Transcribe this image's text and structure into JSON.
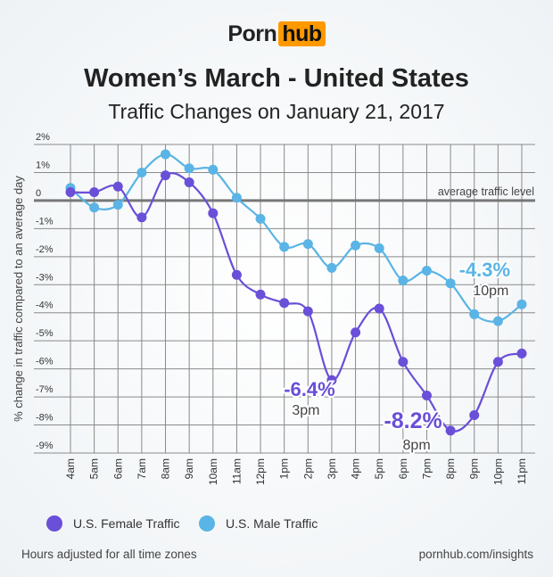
{
  "logo": {
    "part1": "Porn",
    "part2": "hub",
    "accent": "#ff9900"
  },
  "chart_data": {
    "type": "line",
    "title": "Women’s March - United States",
    "subtitle": "Traffic Changes on January 21, 2017",
    "ylabel": "% change in traffic compared to an average day",
    "xlabel": "",
    "ylim": [
      -9,
      2
    ],
    "yticks": [
      "2%",
      "1%",
      "0",
      "-1%",
      "-2%",
      "-3%",
      "-4%",
      "-5%",
      "-6%",
      "-7%",
      "-8%",
      "-9%"
    ],
    "categories": [
      "4am",
      "5am",
      "6am",
      "7am",
      "8am",
      "9am",
      "10am",
      "11am",
      "12pm",
      "1pm",
      "2pm",
      "3pm",
      "4pm",
      "5pm",
      "6pm",
      "7pm",
      "8pm",
      "9pm",
      "10pm",
      "11pm"
    ],
    "grid": true,
    "reference_line": {
      "value": 0,
      "label": "average traffic level"
    },
    "series": [
      {
        "name": "U.S. Female Traffic",
        "color": "#6a4fd8",
        "values": [
          0.3,
          0.3,
          0.5,
          -0.6,
          0.9,
          0.65,
          -0.45,
          -2.65,
          -3.35,
          -3.65,
          -3.95,
          -6.4,
          -4.7,
          -3.85,
          -5.75,
          -6.95,
          -8.2,
          -7.65,
          -5.75,
          -5.45
        ]
      },
      {
        "name": "U.S. Male Traffic",
        "color": "#5ab4e5",
        "values": [
          0.45,
          -0.25,
          -0.15,
          1.0,
          1.65,
          1.15,
          1.1,
          0.1,
          -0.65,
          -1.65,
          -1.55,
          -2.4,
          -1.6,
          -1.7,
          -2.85,
          -2.5,
          -2.95,
          -4.05,
          -4.3,
          -3.7
        ]
      }
    ],
    "annotations": [
      {
        "value": "-6.4%",
        "time": "3pm",
        "series": 0
      },
      {
        "value": "-8.2%",
        "time": "8pm",
        "series": 0
      },
      {
        "value": "-4.3%",
        "time": "10pm",
        "series": 1
      }
    ],
    "legend": "bottom-left"
  },
  "footer": {
    "note": "Hours adjusted for all time zones",
    "link": "pornhub.com/insights"
  }
}
